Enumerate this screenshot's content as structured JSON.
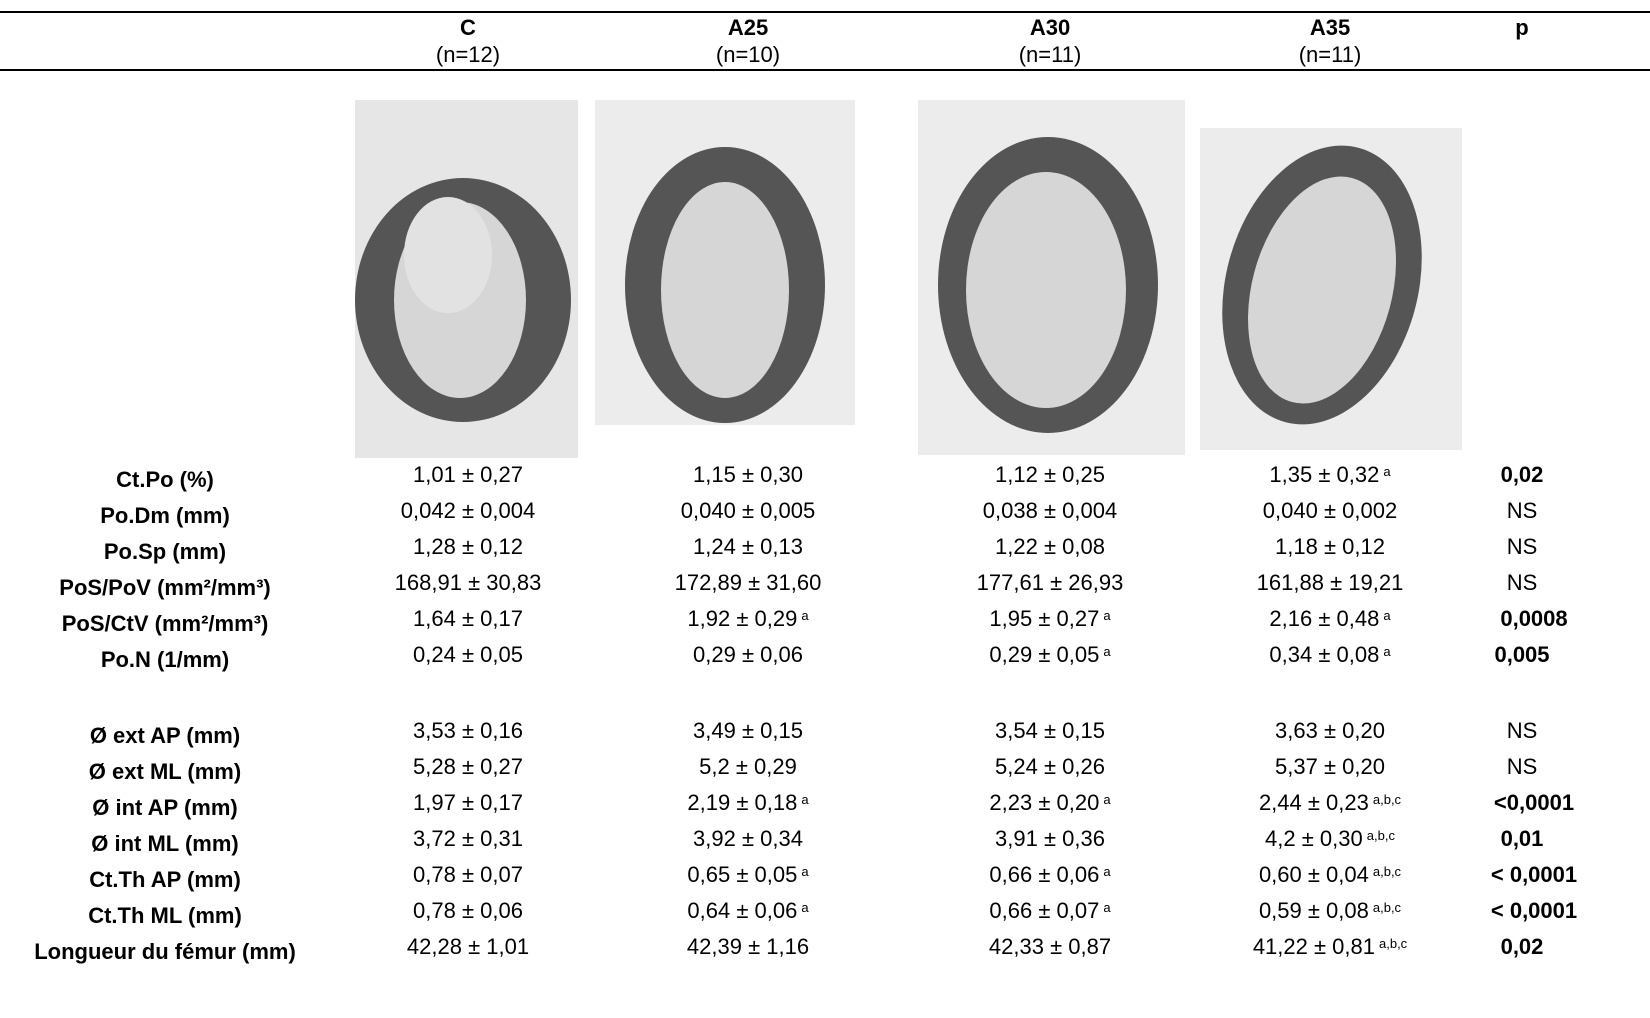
{
  "table": {
    "columns": [
      {
        "name": "C",
        "n": "(n=12)"
      },
      {
        "name": "A25",
        "n": "(n=10)"
      },
      {
        "name": "A30",
        "n": "(n=11)"
      },
      {
        "name": "A35",
        "n": "(n=11)"
      }
    ],
    "p_header": "p",
    "rows": [
      {
        "label": "Ct.Po (%)",
        "values": [
          "1,01 ± 0,27",
          "1,15 ± 0,30",
          "1,12 ± 0,25",
          {
            "text": "1,35 ± 0,32",
            "sup": "a"
          }
        ],
        "p": "0,02"
      },
      {
        "label": "Po.Dm (mm)",
        "values": [
          "0,042 ± 0,004",
          "0,040 ± 0,005",
          "0,038 ± 0,004",
          "0,040 ± 0,002"
        ],
        "p": "NS"
      },
      {
        "label": "Po.Sp (mm)",
        "values": [
          "1,28 ± 0,12",
          "1,24 ± 0,13",
          "1,22 ± 0,08",
          "1,18 ± 0,12"
        ],
        "p": "NS"
      },
      {
        "label": "PoS/PoV (mm²/mm³)",
        "values": [
          "168,91 ± 30,83",
          "172,89 ± 31,60",
          "177,61 ± 26,93",
          "161,88 ± 19,21"
        ],
        "p": "NS"
      },
      {
        "label": "PoS/CtV (mm²/mm³)",
        "values": [
          "1,64 ± 0,17",
          {
            "text": "1,92 ± 0,29",
            "sup": "a"
          },
          {
            "text": "1,95 ± 0,27",
            "sup": "a"
          },
          {
            "text": "2,16 ± 0,48",
            "sup": "a"
          }
        ],
        "p": "0,0008"
      },
      {
        "label": "Po.N (1/mm)",
        "values": [
          "0,24 ± 0,05",
          "0,29 ± 0,06",
          {
            "text": "0,29 ± 0,05",
            "sup": "a"
          },
          {
            "text": "0,34 ± 0,08",
            "sup": "a"
          }
        ],
        "p": "0,005"
      },
      {
        "label": "Ø ext AP (mm)",
        "values": [
          "3,53 ± 0,16",
          "3,49 ± 0,15",
          "3,54 ± 0,15",
          "3,63 ± 0,20"
        ],
        "p": "NS"
      },
      {
        "label": "Ø ext ML (mm)",
        "values": [
          "5,28 ± 0,27",
          "5,2 ± 0,29",
          "5,24 ± 0,26",
          "5,37 ± 0,20"
        ],
        "p": "NS"
      },
      {
        "label": "Ø int AP (mm)",
        "values": [
          "1,97 ± 0,17",
          {
            "text": "2,19 ± 0,18",
            "sup": "a"
          },
          {
            "text": "2,23 ± 0,20",
            "sup": "a"
          },
          {
            "text": "2,44 ± 0,23",
            "sup": "a,b,c"
          }
        ],
        "p": "<0,0001"
      },
      {
        "label": "Ø int ML (mm)",
        "values": [
          "3,72 ± 0,31",
          "3,92 ± 0,34",
          "3,91 ± 0,36",
          {
            "text": "4,2 ± 0,30",
            "sup": "a,b,c"
          }
        ],
        "p": "0,01"
      },
      {
        "label": "Ct.Th AP (mm)",
        "values": [
          "0,78 ± 0,07",
          {
            "text": "0,65 ± 0,05",
            "sup": "a"
          },
          {
            "text": "0,66 ± 0,06",
            "sup": "a"
          },
          {
            "text": "0,60 ± 0,04",
            "sup": "a,b,c"
          }
        ],
        "p": "< 0,0001"
      },
      {
        "label": "Ct.Th ML (mm)",
        "values": [
          "0,78 ± 0,06",
          {
            "text": "0,64 ± 0,06",
            "sup": "a"
          },
          {
            "text": "0,66 ± 0,07",
            "sup": "a"
          },
          {
            "text": "0,59 ± 0,08",
            "sup": "a,b,c"
          }
        ],
        "p": "< 0,0001"
      },
      {
        "label": "Longueur du fémur (mm)",
        "values": [
          "42,28 ± 1,01",
          "42,39 ± 1,16",
          "42,33 ± 0,87",
          {
            "text": "41,22 ± 0,81",
            "sup": "a,b,c"
          }
        ],
        "p": "0,02"
      }
    ]
  }
}
